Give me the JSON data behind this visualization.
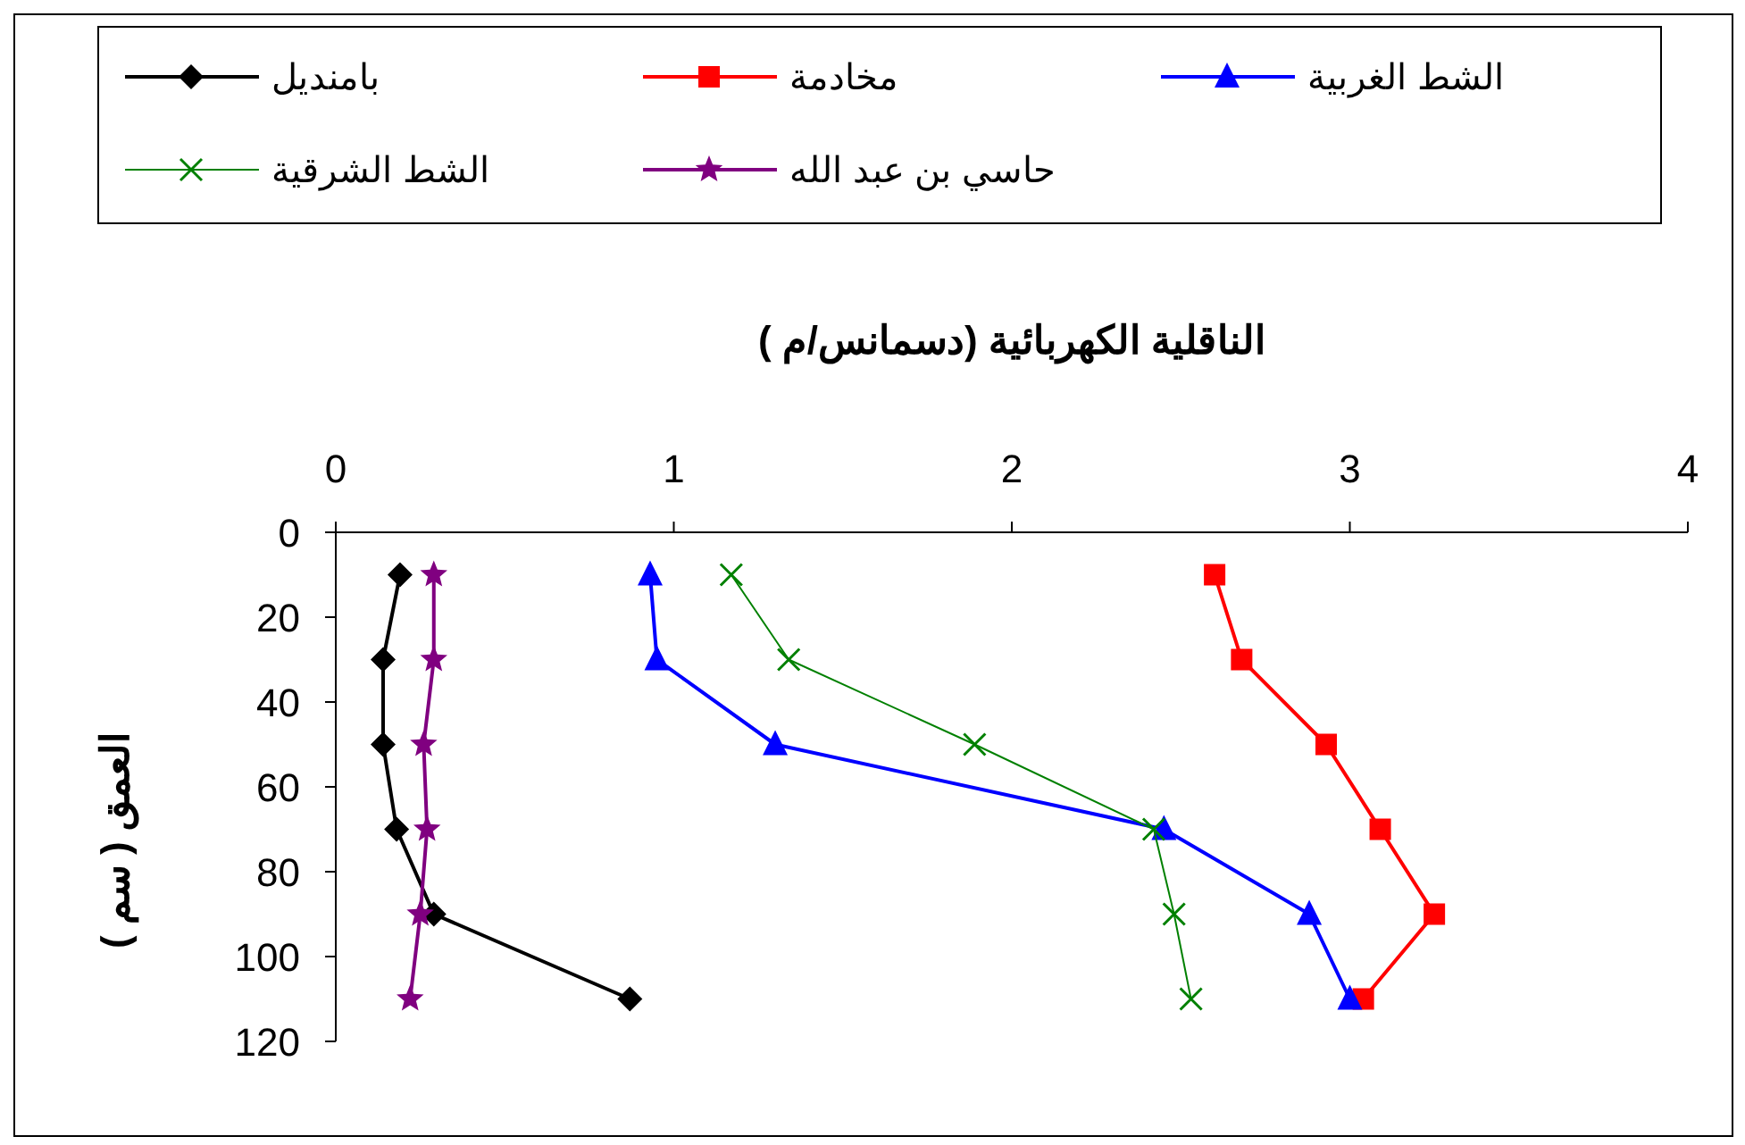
{
  "chart_data": {
    "type": "line",
    "xlabel": "الناقلية الكهربائية (دسمانس/م )",
    "ylabel": "العمق ( سم )",
    "xlim": [
      0,
      4
    ],
    "xticks": [
      0,
      1,
      2,
      3,
      4
    ],
    "ylim": [
      120,
      0
    ],
    "yticks": [
      0,
      20,
      40,
      60,
      80,
      100,
      120
    ],
    "grid": false,
    "legend": "top",
    "series": [
      {
        "name": "بامنديل",
        "color": "#000000",
        "marker": "diamond",
        "x": [
          0.19,
          0.14,
          0.14,
          0.18,
          0.29,
          0.87
        ],
        "values": [
          10,
          30,
          50,
          70,
          90,
          110
        ]
      },
      {
        "name": "مخادمة",
        "color": "#ff0000",
        "marker": "square",
        "x": [
          2.6,
          2.68,
          2.93,
          3.09,
          3.25,
          3.04
        ],
        "values": [
          10,
          30,
          50,
          70,
          90,
          110
        ]
      },
      {
        "name": "الشط الغربية",
        "color": "#0000ff",
        "marker": "triangle",
        "x": [
          0.93,
          0.95,
          1.3,
          2.45,
          2.88,
          3.0
        ],
        "values": [
          10,
          30,
          50,
          70,
          90,
          110
        ]
      },
      {
        "name": "الشط الشرقية",
        "color": "#008000",
        "marker": "cross",
        "x": [
          1.17,
          1.34,
          1.89,
          2.42,
          2.48,
          2.53
        ],
        "values": [
          10,
          30,
          50,
          70,
          90,
          110
        ]
      },
      {
        "name": "حاسي بن عبد الله",
        "color": "#800080",
        "marker": "star",
        "x": [
          0.29,
          0.29,
          0.26,
          0.27,
          0.25,
          0.22
        ],
        "values": [
          10,
          30,
          50,
          70,
          90,
          110
        ]
      }
    ]
  }
}
